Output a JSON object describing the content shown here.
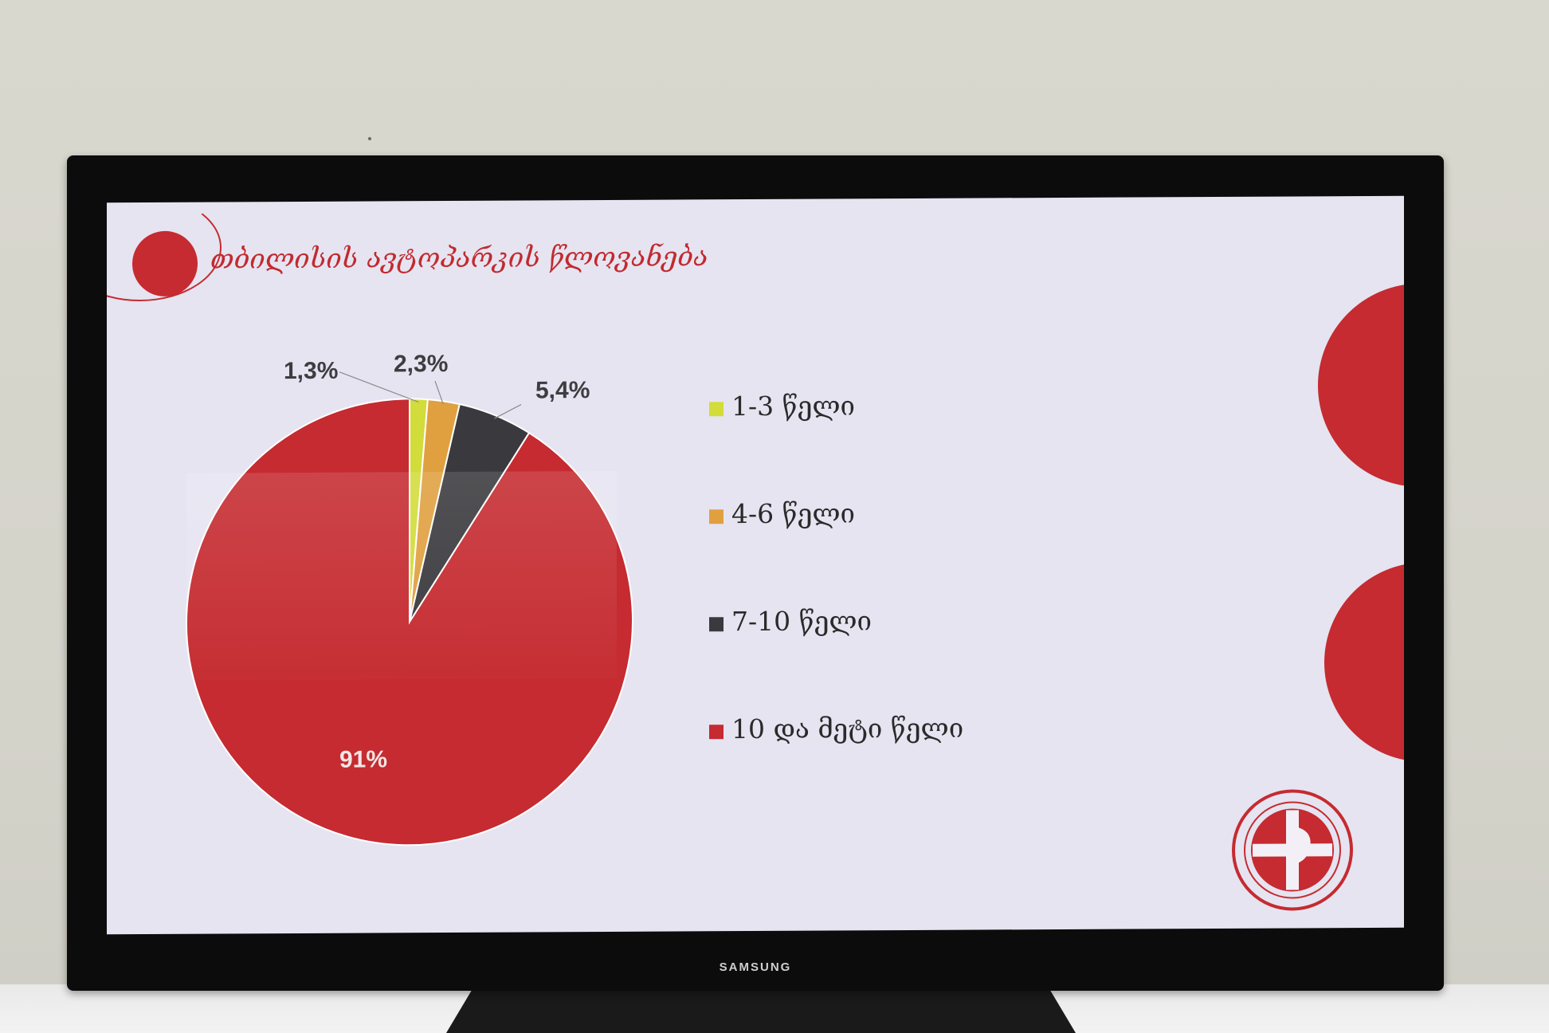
{
  "monitor": {
    "brand": "SAMSUNG"
  },
  "slide": {
    "title": "თბილისის ავტოპარკის წლოვანება",
    "accent_color": "#c52b30",
    "background_color": "#e6e4f1"
  },
  "chart_data": {
    "type": "pie",
    "slices": [
      {
        "label": "1-3 წელი",
        "value": 1.3,
        "display": "1,3%",
        "color": "#d2dc3a"
      },
      {
        "label": "4-6 წელი",
        "value": 2.3,
        "display": "2,3%",
        "color": "#e0a040"
      },
      {
        "label": "7-10 წელი",
        "value": 5.4,
        "display": "5,4%",
        "color": "#3a3a3e"
      },
      {
        "label": "10 და მეტი წელი",
        "value": 91,
        "display": "91%",
        "color": "#c52b30"
      }
    ],
    "start_angle_deg": 0,
    "direction": "clockwise",
    "legend_position": "right"
  },
  "icons": {
    "logo": "federation-emblem-icon"
  }
}
